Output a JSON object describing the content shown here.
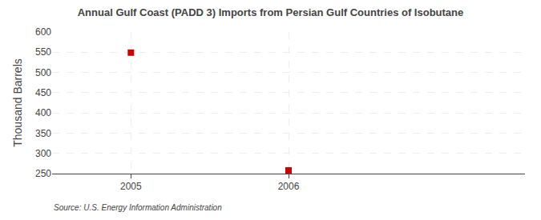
{
  "chart_data": {
    "type": "scatter",
    "title": "Annual Gulf Coast (PADD 3) Imports from Persian Gulf Countries of Isobutane",
    "ylabel": "Thousand Barrels",
    "annotations": [
      "Source: U.S. Energy Information Administration"
    ],
    "x": [
      2005,
      2006
    ],
    "values": [
      549,
      258
    ],
    "color": "#cc0000",
    "marker": "square",
    "xlim": [
      2004.5,
      2007.5
    ],
    "xticks": [
      2005,
      2006
    ],
    "ylim": [
      250,
      600
    ],
    "yticks": [
      250,
      300,
      350,
      400,
      450,
      500,
      550,
      600
    ],
    "grid": true
  }
}
